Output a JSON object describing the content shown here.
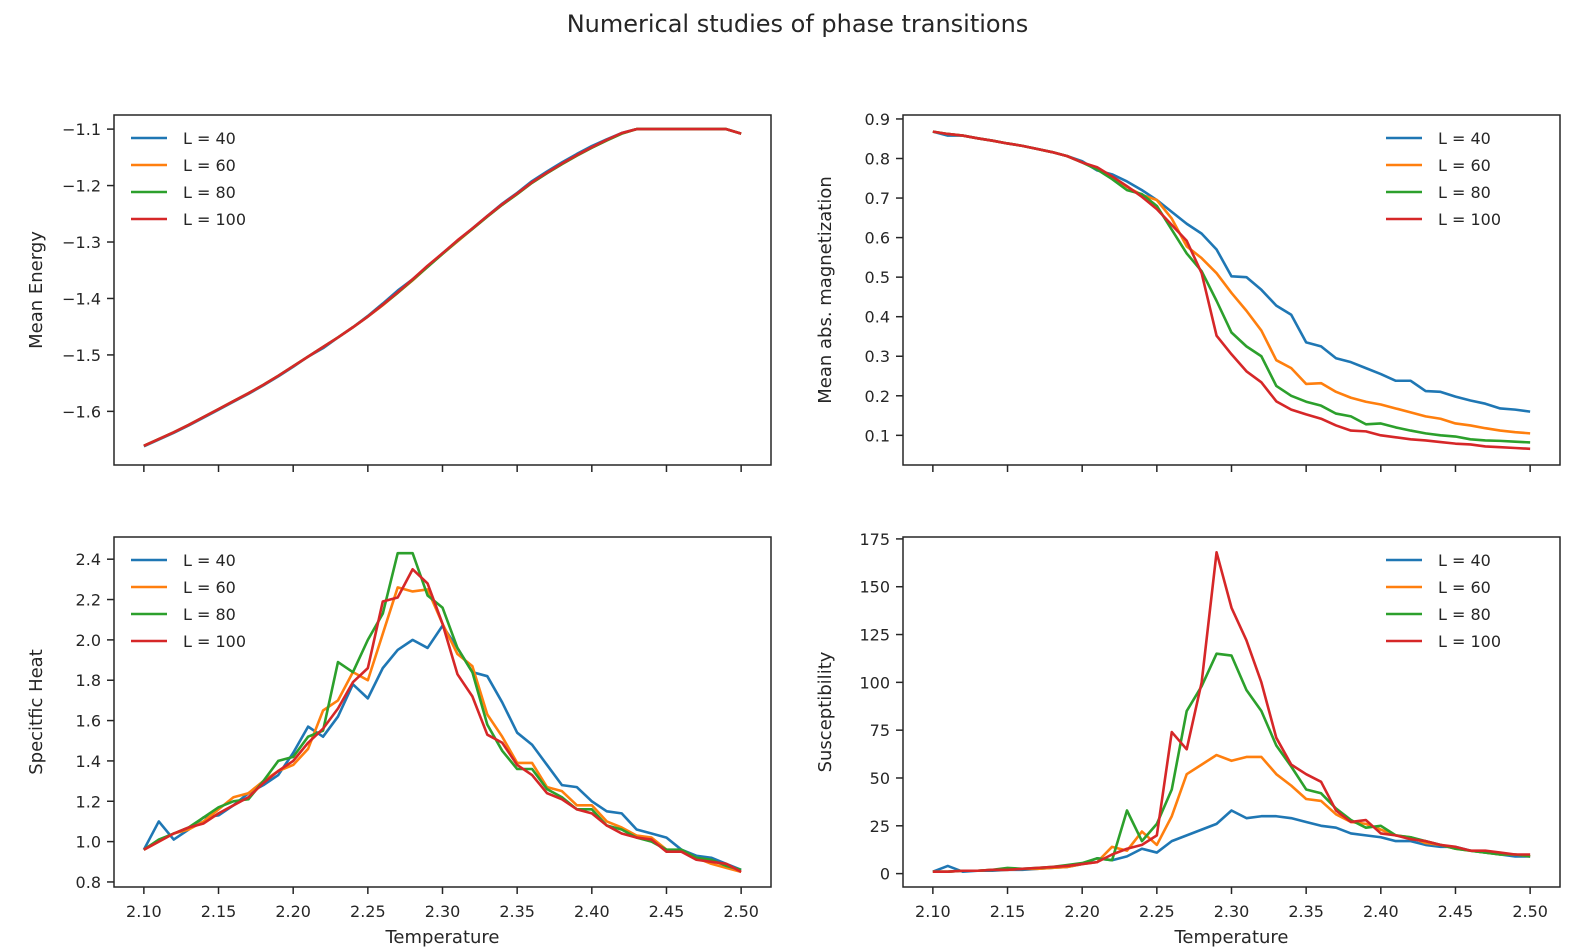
{
  "suptitle": "Numerical studies of phase transitions",
  "colors": {
    "L40": "#1f77b4",
    "L60": "#ff7f0e",
    "L80": "#2ca02c",
    "L100": "#d62728"
  },
  "chart_data": [
    {
      "type": "line",
      "panel": "top-left",
      "xlabel": "",
      "ylabel": "Mean Energy",
      "xlim": [
        2.08,
        2.52
      ],
      "ylim": [
        -1.695,
        -1.075
      ],
      "xticks": [
        2.1,
        2.15,
        2.2,
        2.25,
        2.3,
        2.35,
        2.4,
        2.45,
        2.5
      ],
      "xtick_labels_visible": false,
      "yticks": [
        -1.6,
        -1.5,
        -1.4,
        -1.3,
        -1.2,
        -1.1
      ],
      "ytick_labels": [
        "−1.6",
        "−1.5",
        "−1.4",
        "−1.3",
        "−1.2",
        "−1.1"
      ],
      "legend": "upper-left",
      "x": [
        2.1,
        2.11,
        2.12,
        2.13,
        2.14,
        2.15,
        2.16,
        2.17,
        2.18,
        2.19,
        2.2,
        2.21,
        2.22,
        2.23,
        2.24,
        2.25,
        2.26,
        2.27,
        2.28,
        2.29,
        2.3,
        2.31,
        2.32,
        2.33,
        2.34,
        2.35,
        2.36,
        2.37,
        2.38,
        2.39,
        2.4,
        2.41,
        2.42,
        2.43,
        2.44,
        2.45,
        2.46,
        2.47,
        2.48,
        2.49,
        2.5
      ],
      "series": [
        {
          "name": "L = 40",
          "color": "#1f77b4",
          "values": [
            -1.662,
            -1.65,
            -1.638,
            -1.625,
            -1.611,
            -1.597,
            -1.583,
            -1.569,
            -1.554,
            -1.538,
            -1.521,
            -1.503,
            -1.488,
            -1.469,
            -1.451,
            -1.431,
            -1.409,
            -1.386,
            -1.366,
            -1.344,
            -1.32,
            -1.298,
            -1.276,
            -1.254,
            -1.232,
            -1.213,
            -1.192,
            -1.175,
            -1.159,
            -1.144,
            -1.13,
            -1.118,
            -1.107,
            -1.1,
            -1.1,
            -1.1,
            -1.1,
            -1.1,
            -1.1,
            -1.1,
            -1.108
          ]
        },
        {
          "name": "L = 60",
          "color": "#ff7f0e",
          "values": [
            -1.661,
            -1.649,
            -1.637,
            -1.624,
            -1.61,
            -1.596,
            -1.582,
            -1.568,
            -1.553,
            -1.537,
            -1.52,
            -1.503,
            -1.486,
            -1.469,
            -1.451,
            -1.432,
            -1.412,
            -1.39,
            -1.368,
            -1.344,
            -1.321,
            -1.299,
            -1.277,
            -1.255,
            -1.234,
            -1.215,
            -1.195,
            -1.178,
            -1.162,
            -1.147,
            -1.133,
            -1.12,
            -1.108,
            -1.1,
            -1.1,
            -1.1,
            -1.1,
            -1.1,
            -1.1,
            -1.1,
            -1.108
          ]
        },
        {
          "name": "L = 80",
          "color": "#2ca02c",
          "values": [
            -1.661,
            -1.649,
            -1.637,
            -1.624,
            -1.61,
            -1.596,
            -1.582,
            -1.568,
            -1.553,
            -1.537,
            -1.52,
            -1.503,
            -1.486,
            -1.469,
            -1.451,
            -1.432,
            -1.411,
            -1.39,
            -1.367,
            -1.344,
            -1.321,
            -1.298,
            -1.277,
            -1.255,
            -1.234,
            -1.215,
            -1.195,
            -1.178,
            -1.162,
            -1.147,
            -1.133,
            -1.12,
            -1.108,
            -1.1,
            -1.1,
            -1.1,
            -1.1,
            -1.1,
            -1.1,
            -1.1,
            -1.108
          ]
        },
        {
          "name": "L = 100",
          "color": "#d62728",
          "values": [
            -1.661,
            -1.649,
            -1.637,
            -1.624,
            -1.61,
            -1.596,
            -1.582,
            -1.568,
            -1.553,
            -1.537,
            -1.52,
            -1.503,
            -1.486,
            -1.469,
            -1.451,
            -1.432,
            -1.411,
            -1.389,
            -1.366,
            -1.342,
            -1.32,
            -1.297,
            -1.276,
            -1.254,
            -1.233,
            -1.214,
            -1.194,
            -1.177,
            -1.161,
            -1.146,
            -1.132,
            -1.119,
            -1.107,
            -1.1,
            -1.1,
            -1.1,
            -1.1,
            -1.1,
            -1.1,
            -1.1,
            -1.108
          ]
        }
      ]
    },
    {
      "type": "line",
      "panel": "top-right",
      "xlabel": "",
      "ylabel": "Mean abs. magnetization",
      "xlim": [
        2.08,
        2.52
      ],
      "ylim": [
        0.025,
        0.91
      ],
      "xticks": [
        2.1,
        2.15,
        2.2,
        2.25,
        2.3,
        2.35,
        2.4,
        2.45,
        2.5
      ],
      "xtick_labels_visible": false,
      "yticks": [
        0.1,
        0.2,
        0.3,
        0.4,
        0.5,
        0.6,
        0.7,
        0.8,
        0.9
      ],
      "ytick_labels": [
        "0.1",
        "0.2",
        "0.3",
        "0.4",
        "0.5",
        "0.6",
        "0.7",
        "0.8",
        "0.9"
      ],
      "legend": "upper-right",
      "x": [
        2.1,
        2.11,
        2.12,
        2.13,
        2.14,
        2.15,
        2.16,
        2.17,
        2.18,
        2.19,
        2.2,
        2.21,
        2.22,
        2.23,
        2.24,
        2.25,
        2.26,
        2.27,
        2.28,
        2.29,
        2.3,
        2.31,
        2.32,
        2.33,
        2.34,
        2.35,
        2.36,
        2.37,
        2.38,
        2.39,
        2.4,
        2.41,
        2.42,
        2.43,
        2.44,
        2.45,
        2.46,
        2.47,
        2.48,
        2.49,
        2.5
      ],
      "series": [
        {
          "name": "L = 40",
          "color": "#1f77b4",
          "values": [
            0.868,
            0.858,
            0.858,
            0.851,
            0.845,
            0.838,
            0.832,
            0.824,
            0.816,
            0.806,
            0.793,
            0.77,
            0.76,
            0.742,
            0.72,
            0.695,
            0.665,
            0.635,
            0.61,
            0.57,
            0.502,
            0.5,
            0.468,
            0.428,
            0.405,
            0.335,
            0.325,
            0.295,
            0.285,
            0.27,
            0.255,
            0.238,
            0.238,
            0.212,
            0.21,
            0.198,
            0.188,
            0.18,
            0.168,
            0.165,
            0.16
          ]
        },
        {
          "name": "L = 60",
          "color": "#ff7f0e",
          "values": [
            0.868,
            0.862,
            0.858,
            0.851,
            0.845,
            0.838,
            0.832,
            0.824,
            0.816,
            0.806,
            0.79,
            0.776,
            0.752,
            0.728,
            0.708,
            0.695,
            0.648,
            0.578,
            0.548,
            0.51,
            0.46,
            0.415,
            0.365,
            0.29,
            0.27,
            0.23,
            0.232,
            0.21,
            0.195,
            0.185,
            0.178,
            0.168,
            0.158,
            0.148,
            0.142,
            0.13,
            0.125,
            0.118,
            0.112,
            0.108,
            0.105
          ]
        },
        {
          "name": "L = 80",
          "color": "#2ca02c",
          "values": [
            0.868,
            0.862,
            0.858,
            0.851,
            0.845,
            0.838,
            0.832,
            0.824,
            0.816,
            0.806,
            0.79,
            0.772,
            0.748,
            0.72,
            0.71,
            0.68,
            0.62,
            0.56,
            0.515,
            0.44,
            0.36,
            0.325,
            0.3,
            0.225,
            0.2,
            0.185,
            0.175,
            0.155,
            0.148,
            0.128,
            0.13,
            0.12,
            0.112,
            0.105,
            0.1,
            0.097,
            0.09,
            0.087,
            0.086,
            0.084,
            0.082
          ]
        },
        {
          "name": "L = 100",
          "color": "#d62728",
          "values": [
            0.868,
            0.862,
            0.858,
            0.851,
            0.845,
            0.838,
            0.832,
            0.824,
            0.816,
            0.806,
            0.79,
            0.778,
            0.755,
            0.73,
            0.703,
            0.672,
            0.632,
            0.592,
            0.51,
            0.352,
            0.305,
            0.262,
            0.234,
            0.186,
            0.165,
            0.153,
            0.142,
            0.125,
            0.112,
            0.11,
            0.1,
            0.095,
            0.09,
            0.087,
            0.083,
            0.079,
            0.077,
            0.072,
            0.07,
            0.068,
            0.066
          ]
        }
      ]
    },
    {
      "type": "line",
      "panel": "bottom-left",
      "xlabel": "Temperature",
      "ylabel": "Specitfic Heat",
      "xlim": [
        2.08,
        2.52
      ],
      "ylim": [
        0.775,
        2.51
      ],
      "xticks": [
        2.1,
        2.15,
        2.2,
        2.25,
        2.3,
        2.35,
        2.4,
        2.45,
        2.5
      ],
      "xtick_labels": [
        "2.10",
        "2.15",
        "2.20",
        "2.25",
        "2.30",
        "2.35",
        "2.40",
        "2.45",
        "2.50"
      ],
      "yticks": [
        0.8,
        1.0,
        1.2,
        1.4,
        1.6,
        1.8,
        2.0,
        2.2,
        2.4
      ],
      "ytick_labels": [
        "0.8",
        "1.0",
        "1.2",
        "1.4",
        "1.6",
        "1.8",
        "2.0",
        "2.2",
        "2.4"
      ],
      "legend": "upper-left",
      "x": [
        2.1,
        2.11,
        2.12,
        2.13,
        2.14,
        2.15,
        2.16,
        2.17,
        2.18,
        2.19,
        2.2,
        2.21,
        2.22,
        2.23,
        2.24,
        2.25,
        2.26,
        2.27,
        2.28,
        2.29,
        2.3,
        2.31,
        2.32,
        2.33,
        2.34,
        2.35,
        2.36,
        2.37,
        2.38,
        2.39,
        2.4,
        2.41,
        2.42,
        2.43,
        2.44,
        2.45,
        2.46,
        2.47,
        2.48,
        2.49,
        2.5
      ],
      "series": [
        {
          "name": "L = 40",
          "color": "#1f77b4",
          "values": [
            0.96,
            1.1,
            1.01,
            1.06,
            1.12,
            1.13,
            1.18,
            1.24,
            1.28,
            1.33,
            1.44,
            1.57,
            1.52,
            1.62,
            1.78,
            1.71,
            1.86,
            1.95,
            2.0,
            1.96,
            2.07,
            1.96,
            1.84,
            1.82,
            1.69,
            1.54,
            1.48,
            1.38,
            1.28,
            1.27,
            1.2,
            1.15,
            1.14,
            1.06,
            1.04,
            1.02,
            0.96,
            0.93,
            0.92,
            0.89,
            0.86
          ]
        },
        {
          "name": "L = 60",
          "color": "#ff7f0e",
          "values": [
            0.96,
            1.0,
            1.04,
            1.06,
            1.1,
            1.16,
            1.22,
            1.24,
            1.3,
            1.35,
            1.38,
            1.46,
            1.65,
            1.7,
            1.84,
            1.8,
            2.03,
            2.26,
            2.24,
            2.25,
            2.08,
            1.93,
            1.87,
            1.63,
            1.52,
            1.39,
            1.39,
            1.27,
            1.25,
            1.18,
            1.18,
            1.1,
            1.07,
            1.03,
            1.02,
            0.96,
            0.95,
            0.92,
            0.89,
            0.87,
            0.85
          ]
        },
        {
          "name": "L = 80",
          "color": "#2ca02c",
          "values": [
            0.96,
            1.01,
            1.04,
            1.07,
            1.12,
            1.17,
            1.2,
            1.21,
            1.3,
            1.4,
            1.42,
            1.52,
            1.55,
            1.89,
            1.84,
            2.0,
            2.13,
            2.43,
            2.43,
            2.22,
            2.16,
            1.96,
            1.84,
            1.58,
            1.45,
            1.36,
            1.36,
            1.26,
            1.22,
            1.16,
            1.16,
            1.08,
            1.06,
            1.02,
            1.0,
            0.96,
            0.96,
            0.92,
            0.91,
            0.88,
            0.86
          ]
        },
        {
          "name": "L = 100",
          "color": "#d62728",
          "values": [
            0.96,
            1.0,
            1.04,
            1.07,
            1.09,
            1.14,
            1.18,
            1.22,
            1.29,
            1.35,
            1.4,
            1.49,
            1.56,
            1.66,
            1.79,
            1.86,
            2.19,
            2.21,
            2.35,
            2.28,
            2.08,
            1.83,
            1.72,
            1.53,
            1.49,
            1.38,
            1.33,
            1.24,
            1.21,
            1.16,
            1.14,
            1.08,
            1.04,
            1.02,
            1.01,
            0.95,
            0.95,
            0.91,
            0.9,
            0.89,
            0.85
          ]
        }
      ]
    },
    {
      "type": "line",
      "panel": "bottom-right",
      "xlabel": "Temperature",
      "ylabel": "Susceptibility",
      "xlim": [
        2.08,
        2.52
      ],
      "ylim": [
        -7,
        176
      ],
      "xticks": [
        2.1,
        2.15,
        2.2,
        2.25,
        2.3,
        2.35,
        2.4,
        2.45,
        2.5
      ],
      "xtick_labels": [
        "2.10",
        "2.15",
        "2.20",
        "2.25",
        "2.30",
        "2.35",
        "2.40",
        "2.45",
        "2.50"
      ],
      "yticks": [
        0,
        25,
        50,
        75,
        100,
        125,
        150,
        175
      ],
      "ytick_labels": [
        "0",
        "25",
        "50",
        "75",
        "100",
        "125",
        "150",
        "175"
      ],
      "legend": "upper-right",
      "x": [
        2.1,
        2.11,
        2.12,
        2.13,
        2.14,
        2.15,
        2.16,
        2.17,
        2.18,
        2.19,
        2.2,
        2.21,
        2.22,
        2.23,
        2.24,
        2.25,
        2.26,
        2.27,
        2.28,
        2.29,
        2.3,
        2.31,
        2.32,
        2.33,
        2.34,
        2.35,
        2.36,
        2.37,
        2.38,
        2.39,
        2.4,
        2.41,
        2.42,
        2.43,
        2.44,
        2.45,
        2.46,
        2.47,
        2.48,
        2.49,
        2.5
      ],
      "series": [
        {
          "name": "L = 40",
          "color": "#1f77b4",
          "values": [
            1,
            4,
            1,
            1.5,
            1.5,
            2,
            2,
            2.5,
            3,
            3.5,
            5,
            8,
            7,
            9,
            13,
            11,
            17,
            20,
            23,
            26,
            33,
            29,
            30,
            30,
            29,
            27,
            25,
            24,
            21,
            20,
            19,
            17,
            17,
            15,
            14,
            14,
            12,
            11,
            10,
            9,
            9
          ]
        },
        {
          "name": "L = 60",
          "color": "#ff7f0e",
          "values": [
            1,
            1,
            1.5,
            1.5,
            2,
            2,
            2.5,
            2.5,
            3,
            3.5,
            5,
            6,
            14,
            12,
            22,
            15,
            30,
            52,
            57,
            62,
            59,
            61,
            61,
            52,
            46,
            39,
            38,
            31,
            27,
            26,
            23,
            20,
            19,
            16,
            15,
            13,
            12,
            11,
            10,
            10,
            9
          ]
        },
        {
          "name": "L = 80",
          "color": "#2ca02c",
          "values": [
            1,
            1,
            1.5,
            1.5,
            2,
            3,
            2.5,
            3,
            3.5,
            4.5,
            5.5,
            8,
            7,
            33,
            17,
            26,
            44,
            85,
            98,
            115,
            114,
            96,
            85,
            67,
            56,
            44,
            42,
            34,
            28,
            24,
            25,
            20,
            19,
            17,
            15,
            13,
            12,
            11,
            10,
            10,
            9
          ]
        },
        {
          "name": "L = 100",
          "color": "#d62728",
          "values": [
            1,
            1,
            1.5,
            1.5,
            2,
            2,
            2.5,
            3,
            3.5,
            4,
            5,
            6,
            10,
            13,
            15,
            20,
            74,
            65,
            100,
            168,
            139,
            122,
            100,
            71,
            57,
            52,
            48,
            33,
            27,
            28,
            21,
            20,
            18,
            17,
            15,
            14,
            12,
            12,
            11,
            10,
            10
          ]
        }
      ]
    }
  ]
}
